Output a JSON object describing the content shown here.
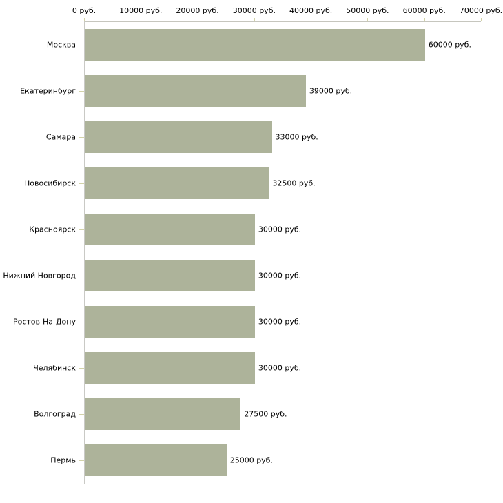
{
  "chart_data": {
    "type": "bar",
    "orientation": "horizontal",
    "title": "",
    "xlabel": "",
    "ylabel": "",
    "categories": [
      "Москва",
      "Екатеринбург",
      "Самара",
      "Новосибирск",
      "Красноярск",
      "Нижний Новгород",
      "Ростов-На-Дону",
      "Челябинск",
      "Волгоград",
      "Пермь"
    ],
    "values": [
      60000,
      39000,
      33000,
      32500,
      30000,
      30000,
      30000,
      30000,
      27500,
      25000
    ],
    "value_labels": [
      "60000 руб.",
      "39000 руб.",
      "33000 руб.",
      "32500 руб.",
      "30000 руб.",
      "30000 руб.",
      "30000 руб.",
      "30000 руб.",
      "27500 руб.",
      "25000 руб."
    ],
    "x_tick_values": [
      0,
      10000,
      20000,
      30000,
      40000,
      50000,
      60000,
      70000
    ],
    "x_tick_labels": [
      "0 руб.",
      "10000 руб.",
      "20000 руб.",
      "30000 руб.",
      "40000 руб.",
      "50000 руб.",
      "60000 руб.",
      "70000 руб."
    ],
    "xlim": [
      0,
      70000
    ],
    "currency_suffix": "руб.",
    "grid": false,
    "legend": "none",
    "axis_position": "top-left",
    "colors": {
      "bar": "#adb39a",
      "axis_line": "#c6c6be",
      "tick_mark": "#d2d2a8",
      "text": "#000000",
      "background": "#ffffff"
    }
  }
}
